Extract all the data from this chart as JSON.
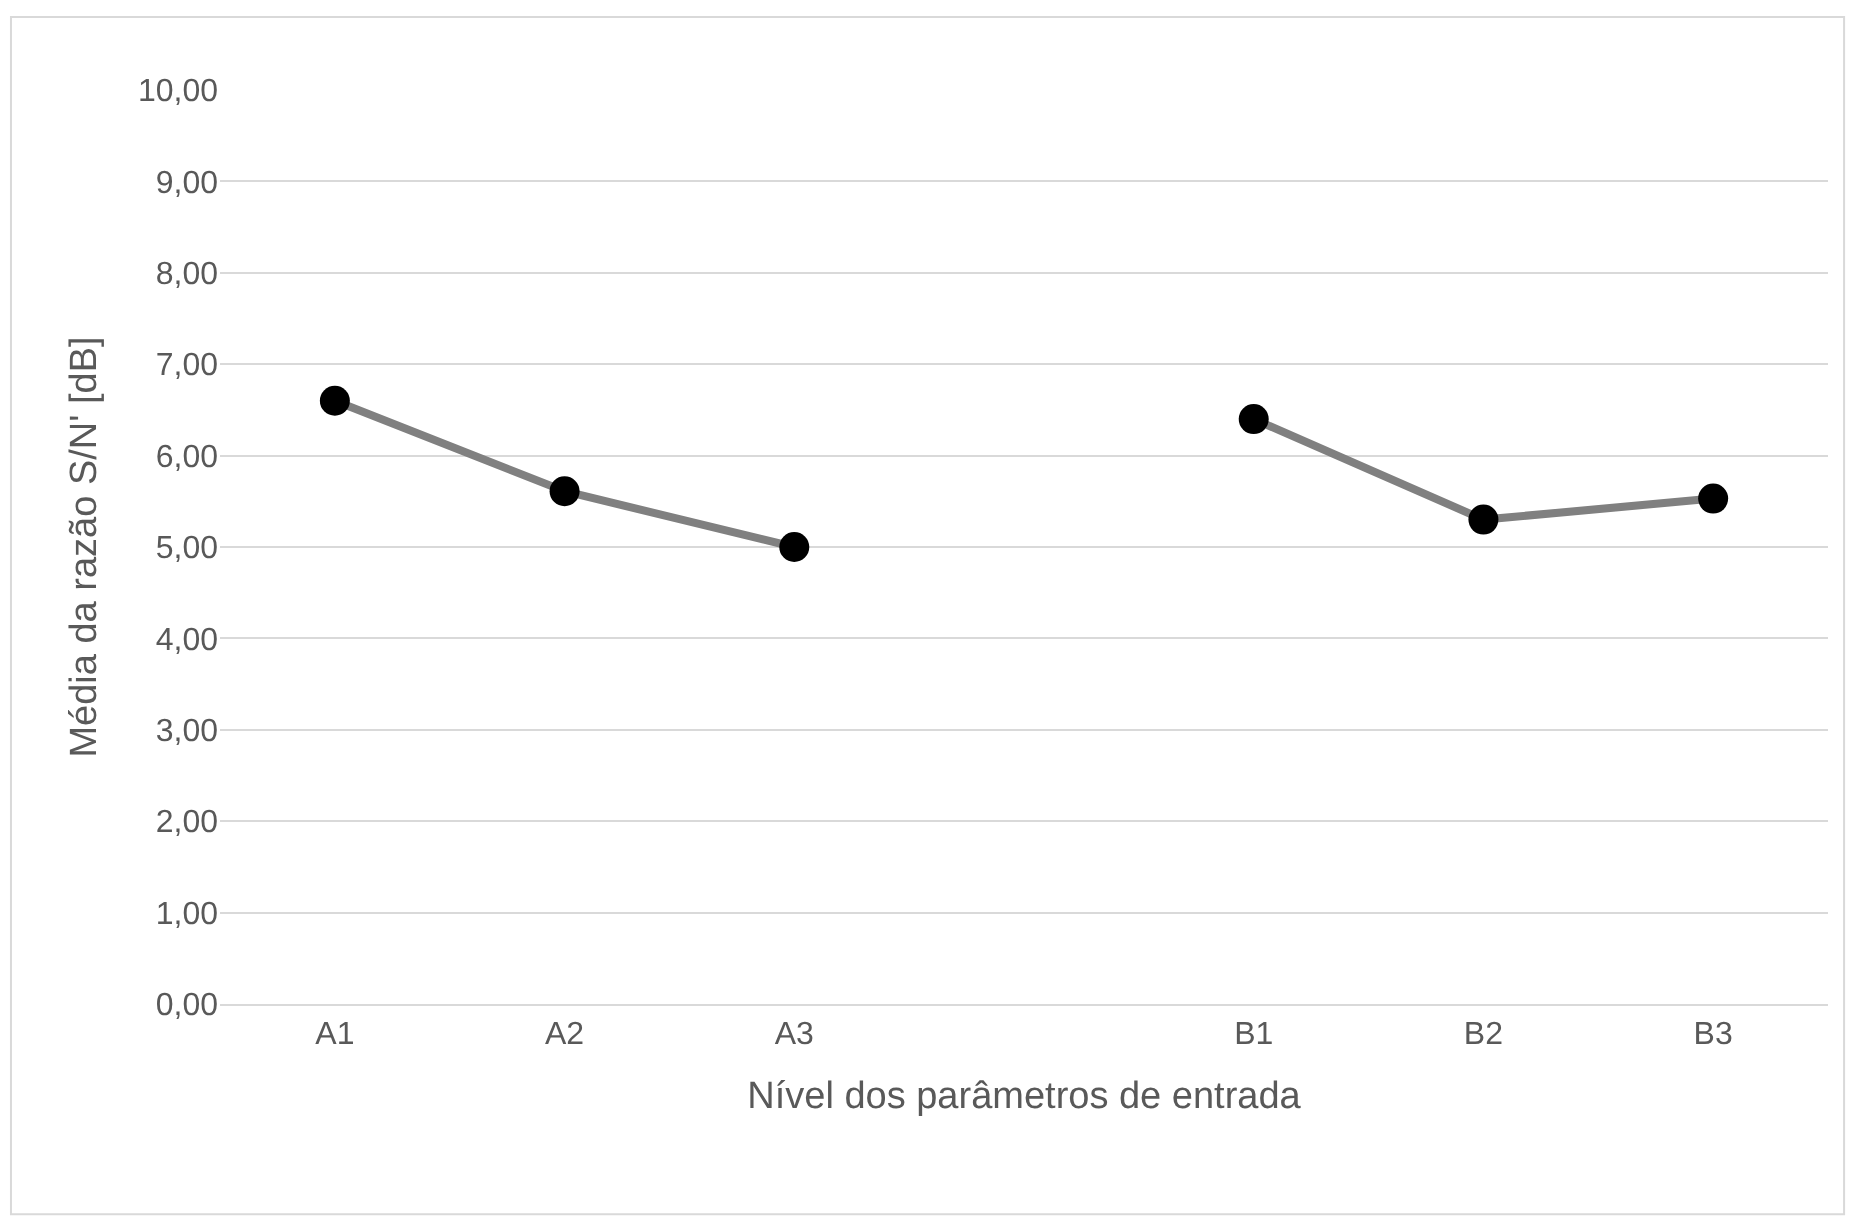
{
  "chart_data": {
    "type": "line",
    "xlabel": "Nível dos parâmetros de entrada",
    "ylabel": "Média da razão S/N' [dB]",
    "categories": [
      "A1",
      "A2",
      "A3",
      null,
      "B1",
      "B2",
      "B3"
    ],
    "series": [
      {
        "color": "#808080",
        "colors": [
          "#000000",
          "#000000",
          "#000000",
          "#000000",
          "#000000",
          "#000000",
          "#000000"
        ],
        "values": [
          6.6,
          5.61,
          5.0,
          null,
          6.4,
          5.3,
          5.53
        ]
      }
    ],
    "ylim": [
      0,
      10
    ],
    "yticks": [
      {
        "value": 0,
        "label": "0,00"
      },
      {
        "value": 1,
        "label": "1,00"
      },
      {
        "value": 2,
        "label": "2,00"
      },
      {
        "value": 3,
        "label": "3,00"
      },
      {
        "value": 4,
        "label": "4,00"
      },
      {
        "value": 5,
        "label": "5,00"
      },
      {
        "value": 6,
        "label": "6,00"
      },
      {
        "value": 7,
        "label": "7,00"
      },
      {
        "value": 8,
        "label": "8,00"
      },
      {
        "value": 9,
        "label": "9,00"
      },
      {
        "value": 10,
        "label": "10,00"
      }
    ],
    "grid": "y",
    "marker": "circle",
    "line_style": "solid"
  }
}
